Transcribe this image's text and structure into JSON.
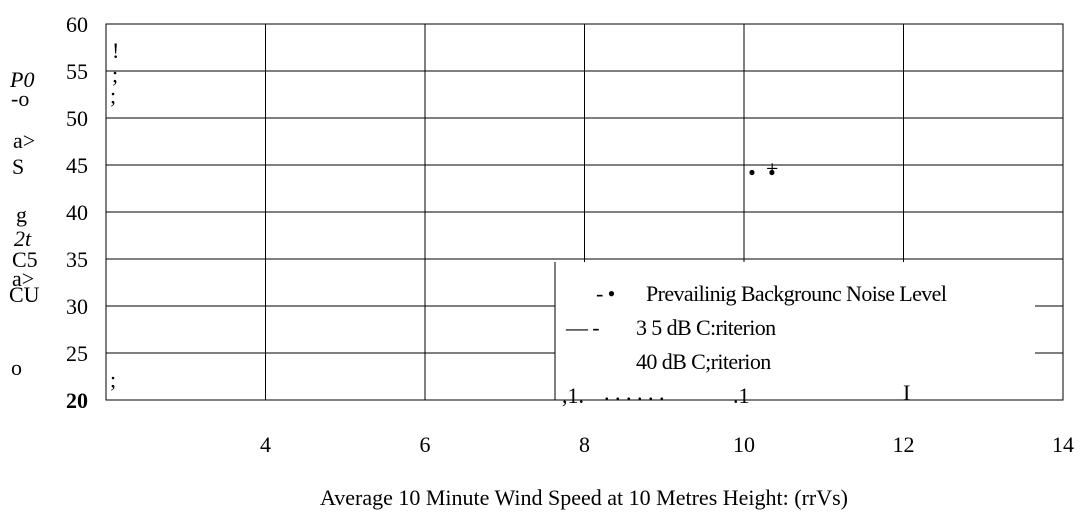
{
  "chart_data": {
    "type": "line",
    "title": "",
    "xlabel": "Average 10 Minute Wind Speed at 10 Metres Height: (rrVs)",
    "ylabel_fragments": [
      "P0",
      "-o",
      "a>",
      "S",
      "g",
      "2t",
      "C5",
      "a>",
      "CU",
      "o"
    ],
    "x_ticks": [
      "4",
      "6",
      "8",
      "10",
      "12",
      "14"
    ],
    "y_ticks": [
      "20",
      "25",
      "30",
      "35",
      "40",
      "45",
      "50",
      "55",
      "60"
    ],
    "xlim": [
      2,
      14
    ],
    "ylim": [
      20,
      60
    ],
    "grid": true,
    "legend_position": "bottom-right",
    "legend": [
      {
        "line_symbol": "- •",
        "label": "Prevailinig Backgrounc Noise Level"
      },
      {
        "line_symbol": "— -",
        "label": "3 5  dB  C:riterion"
      },
      {
        "line_symbol": "",
        "label": "40 dB C;riterion"
      }
    ],
    "series": [
      {
        "points": [
          {
            "x": 10.1,
            "y": 44.2
          },
          {
            "x": 10.35,
            "y": 44.2
          }
        ]
      }
    ],
    "artifacts": [
      "!",
      ";",
      ";",
      ";",
      ",1.",
      ". . . . . .",
      ".1",
      "I",
      "+"
    ]
  }
}
